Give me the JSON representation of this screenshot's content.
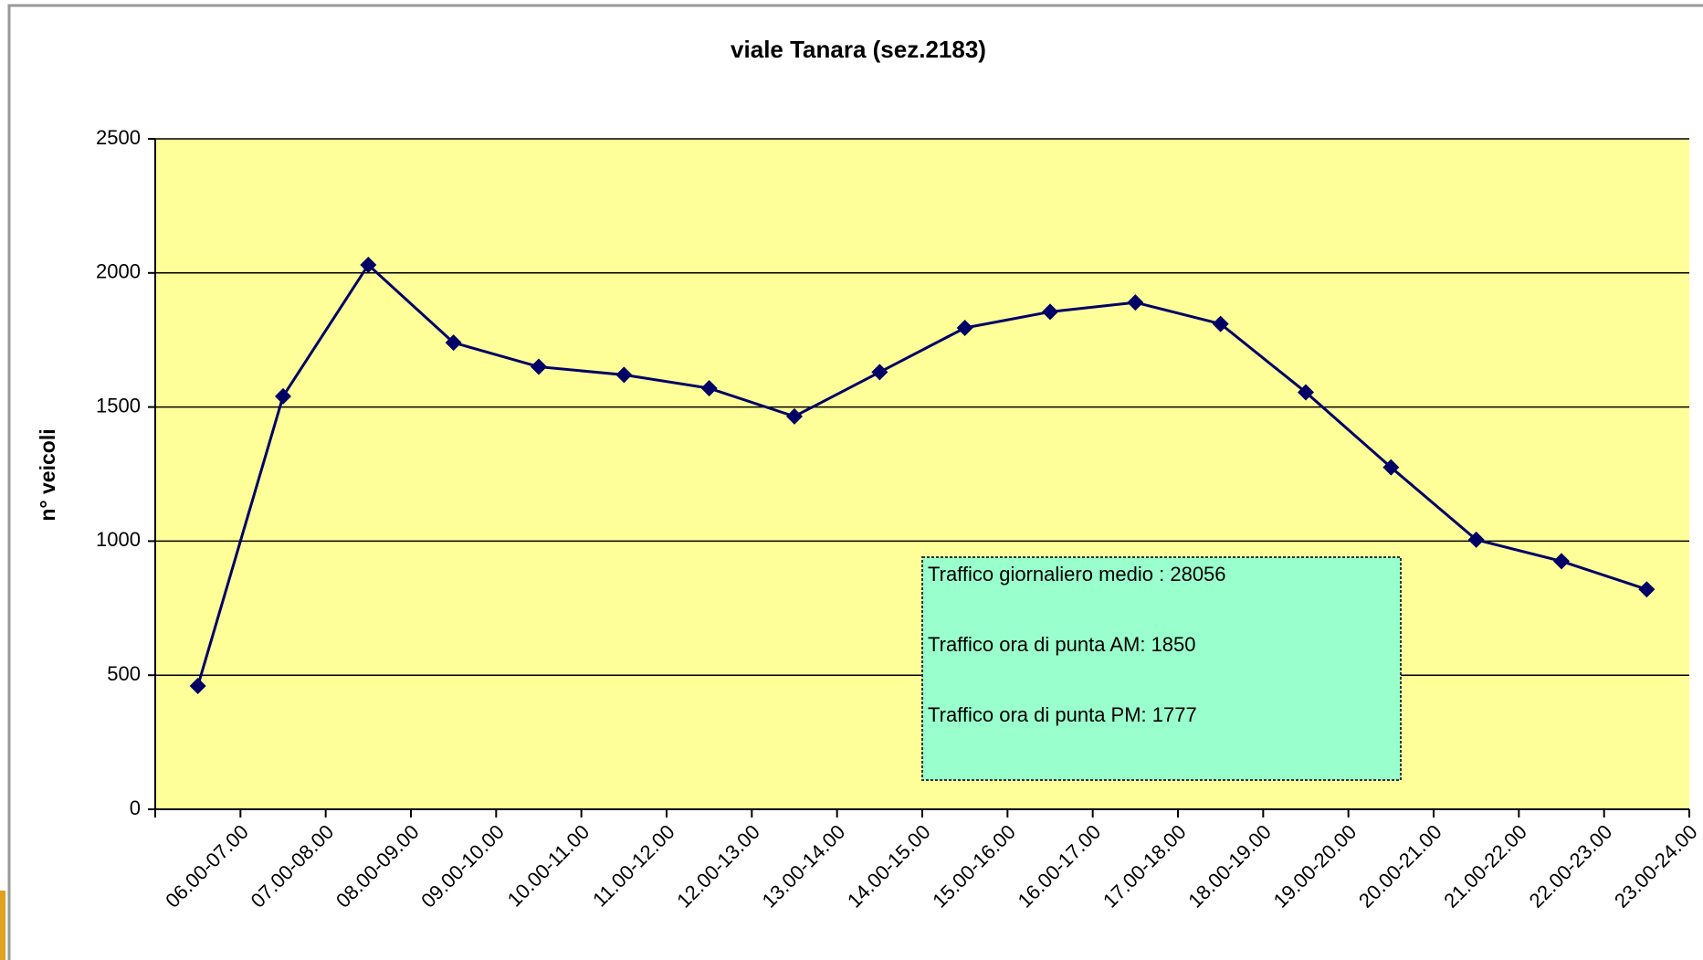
{
  "chart_data": {
    "type": "line",
    "title": "viale Tanara (sez.2183)",
    "y_label": "n° veicoli",
    "categories": [
      "06.00-07.00",
      "07.00-08.00",
      "08.00-09.00",
      "09.00-10.00",
      "10.00-11.00",
      "11.00-12.00",
      "12.00-13.00",
      "13.00-14.00",
      "14.00-15.00",
      "15.00-16.00",
      "16.00-17.00",
      "17.00-18.00",
      "18.00-19.00",
      "19.00-20.00",
      "20.00-21.00",
      "21.00-22.00",
      "22.00-23.00",
      "23.00-24.00"
    ],
    "values": [
      460,
      1540,
      2030,
      1740,
      1650,
      1620,
      1570,
      1465,
      1630,
      1795,
      1855,
      1890,
      1810,
      1555,
      1275,
      1005,
      925,
      820
    ],
    "color": "#000066",
    "ylim": [
      0,
      2500
    ],
    "yticks": [
      0,
      500,
      1000,
      1500,
      2000,
      2500
    ],
    "grid": true,
    "annotations": [
      "Traffico giornaliero medio : 28056",
      "Traffico ora di punta AM: 1850",
      "Traffico ora di punta PM: 1777"
    ]
  }
}
